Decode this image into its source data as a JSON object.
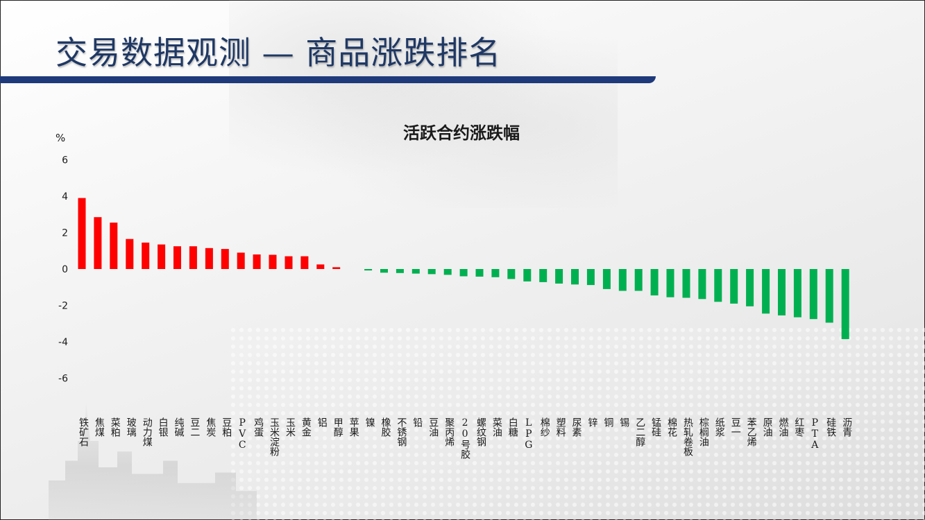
{
  "slide": {
    "title": "交易数据观测 — 商品涨跌排名"
  },
  "colors": {
    "accent_bar": "#1f3a7a",
    "title_text": "#1f3864",
    "up": "#ff0000",
    "down": "#00b050"
  },
  "chart_data": {
    "type": "bar",
    "title": "活跃合约涨跌幅",
    "ylabel": "%",
    "xlabel": "",
    "ylim": [
      -6,
      6
    ],
    "yticks": [
      6,
      4,
      2,
      0,
      -2,
      -4,
      -6
    ],
    "grid": false,
    "legend": "none",
    "categories": [
      "铁矿石",
      "焦煤",
      "菜粕",
      "玻璃",
      "动力煤",
      "白银",
      "纯碱",
      "豆二",
      "焦炭",
      "豆粕",
      "PVC",
      "鸡蛋",
      "玉米淀粉",
      "玉米",
      "黄金",
      "铝",
      "甲醇",
      "苹果",
      "镍",
      "橡胶",
      "不锈钢",
      "铅",
      "豆油",
      "聚丙烯",
      "20号胶",
      "螺纹钢",
      "菜油",
      "白糖",
      "LPG",
      "棉纱",
      "塑料",
      "尿素",
      "锌",
      "铜",
      "锡",
      "乙二醇",
      "锰硅",
      "棉花",
      "热轧卷板",
      "棕榈油",
      "纸浆",
      "豆一",
      "苯乙烯",
      "原油",
      "燃油",
      "红枣",
      "PTA",
      "硅铁",
      "沥青"
    ],
    "values": [
      3.9,
      2.85,
      2.55,
      1.65,
      1.45,
      1.35,
      1.25,
      1.25,
      1.15,
      1.1,
      0.9,
      0.8,
      0.78,
      0.7,
      0.7,
      0.25,
      0.1,
      0.0,
      -0.08,
      -0.2,
      -0.22,
      -0.25,
      -0.28,
      -0.32,
      -0.4,
      -0.42,
      -0.45,
      -0.55,
      -0.68,
      -0.72,
      -0.8,
      -0.85,
      -0.88,
      -1.1,
      -1.2,
      -1.2,
      -1.45,
      -1.55,
      -1.58,
      -1.65,
      -1.8,
      -1.9,
      -2.05,
      -2.45,
      -2.55,
      -2.65,
      -2.75,
      -2.95,
      -3.85
    ]
  }
}
